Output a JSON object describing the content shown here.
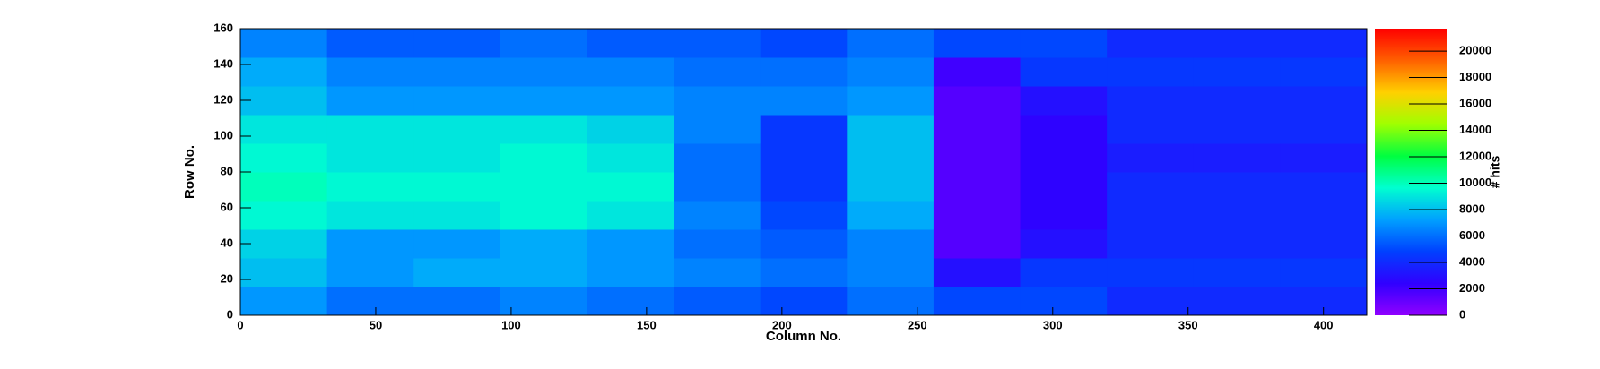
{
  "chart_data": {
    "type": "heatmap",
    "x_label": "Column No.",
    "y_label": "Row No.",
    "z_label": "# hits",
    "x_bins": [
      0,
      32,
      64,
      96,
      128,
      160,
      192,
      224,
      256,
      288,
      320,
      352,
      384,
      416
    ],
    "y_bins": [
      0,
      16,
      32,
      48,
      64,
      80,
      96,
      112,
      128,
      144,
      160
    ],
    "z": [
      [
        7000,
        6000,
        6000,
        6500,
        6000,
        5500,
        5000,
        6000,
        5000,
        5000,
        4000,
        4000,
        4000
      ],
      [
        8000,
        7000,
        7500,
        7500,
        7000,
        6500,
        6000,
        6500,
        3000,
        4500,
        4500,
        4500,
        4500
      ],
      [
        8500,
        7000,
        7000,
        7500,
        7000,
        6000,
        5500,
        6500,
        1500,
        3000,
        4000,
        4000,
        4000
      ],
      [
        9500,
        9000,
        9000,
        9500,
        9000,
        6500,
        5000,
        7500,
        1500,
        2500,
        4000,
        4000,
        4000
      ],
      [
        10000,
        9500,
        9500,
        9500,
        9500,
        6000,
        4500,
        8000,
        1500,
        2500,
        4000,
        4000,
        4000
      ],
      [
        9500,
        9000,
        9000,
        9500,
        9000,
        6000,
        4500,
        8000,
        1500,
        2500,
        3500,
        3500,
        3500
      ],
      [
        9000,
        9000,
        9000,
        9000,
        8500,
        6500,
        4500,
        8000,
        1500,
        2500,
        4000,
        4000,
        4000
      ],
      [
        8000,
        7000,
        7000,
        7000,
        7000,
        6500,
        6500,
        7000,
        1500,
        3000,
        4000,
        4000,
        4000
      ],
      [
        7500,
        6500,
        6500,
        6500,
        6500,
        6000,
        6000,
        6500,
        2000,
        4500,
        4500,
        4500,
        4500
      ],
      [
        6500,
        5500,
        5500,
        6000,
        5500,
        5500,
        5000,
        6000,
        5000,
        5000,
        4000,
        4000,
        4000
      ]
    ],
    "xlim": [
      0,
      416
    ],
    "ylim": [
      0,
      160
    ],
    "zlim": [
      0,
      21700
    ],
    "xticks": [
      0,
      50,
      100,
      150,
      200,
      250,
      300,
      350,
      400
    ],
    "yticks": [
      0,
      20,
      40,
      60,
      80,
      100,
      120,
      140,
      160
    ],
    "zticks": [
      0,
      2000,
      4000,
      6000,
      8000,
      10000,
      12000,
      14000,
      16000,
      18000,
      20000
    ],
    "colorscale": [
      "#9000ff",
      "#3000ff",
      "#0040ff",
      "#00a0ff",
      "#00ffd0",
      "#00ff40",
      "#a0ff00",
      "#ffd000",
      "#ff6000",
      "#ff0000"
    ]
  }
}
